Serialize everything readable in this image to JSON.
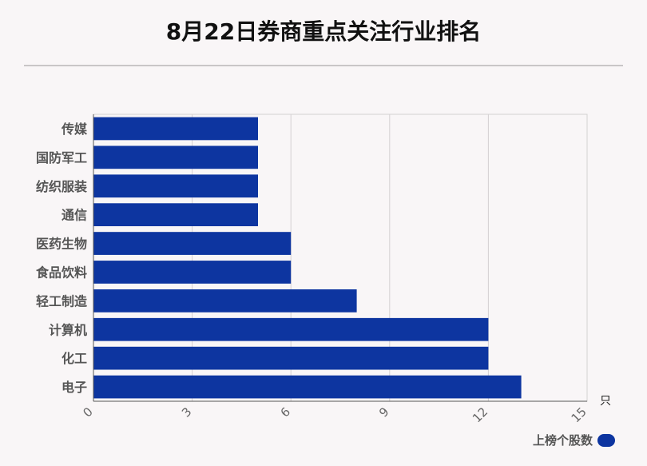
{
  "title": "8月22日券商重点关注行业排名",
  "chart_data": {
    "type": "bar",
    "orientation": "horizontal",
    "categories": [
      "传媒",
      "国防军工",
      "纺织服装",
      "通信",
      "医药生物",
      "食品饮料",
      "轻工制造",
      "计算机",
      "化工",
      "电子"
    ],
    "series": [
      {
        "name": "上榜个股数",
        "values": [
          5,
          5,
          5,
          5,
          6,
          6,
          8,
          12,
          12,
          13
        ]
      }
    ],
    "x_ticks": [
      "0",
      "3",
      "6",
      "9",
      "12",
      "15"
    ],
    "x_unit": "只",
    "xlim": [
      0,
      15
    ],
    "grid": true,
    "legend_position": "bottom-right",
    "bar_color": "#0d35a0"
  },
  "legend": {
    "label": "上榜个股数"
  }
}
